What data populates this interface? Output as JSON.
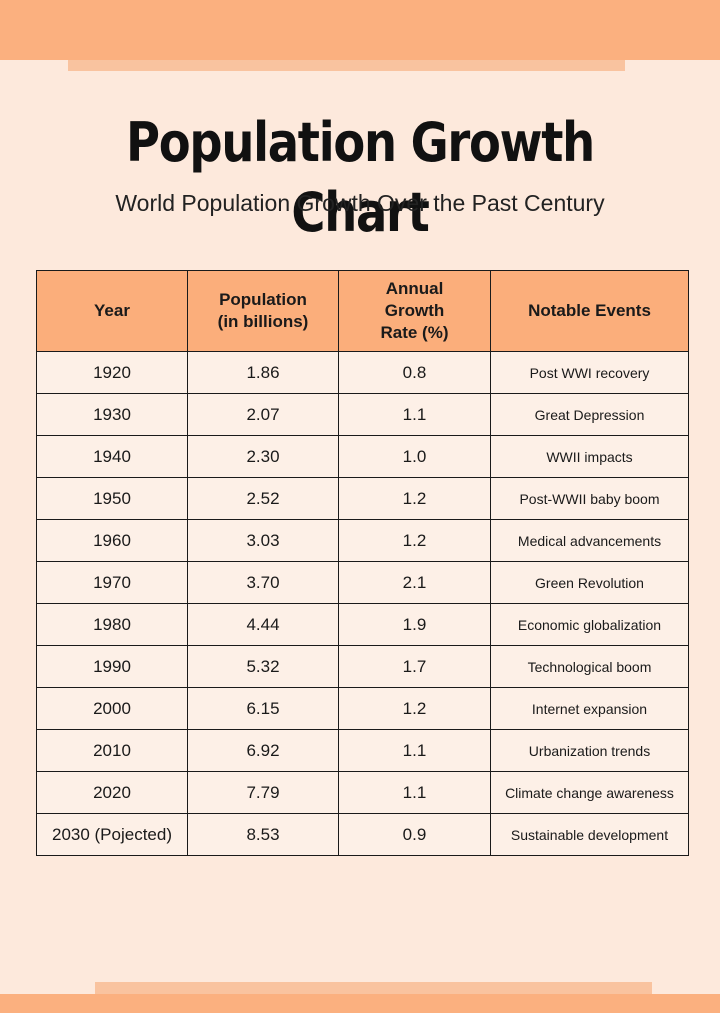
{
  "header": {
    "title": "Population Growth Chart",
    "subtitle": "World Population Growth Over the Past Century"
  },
  "table": {
    "headers": {
      "year": "Year",
      "population_line1": "Population",
      "population_line2": "(in billions)",
      "rate_line1": "Annual",
      "rate_line2": "Growth",
      "rate_line3": "Rate (%)",
      "events": "Notable Events"
    },
    "rows": [
      {
        "year": "1920",
        "population": "1.86",
        "rate": "0.8",
        "event": "Post WWI recovery"
      },
      {
        "year": "1930",
        "population": "2.07",
        "rate": "1.1",
        "event": "Great Depression"
      },
      {
        "year": "1940",
        "population": "2.30",
        "rate": "1.0",
        "event": "WWII impacts"
      },
      {
        "year": "1950",
        "population": "2.52",
        "rate": "1.2",
        "event": "Post-WWII baby boom"
      },
      {
        "year": "1960",
        "population": "3.03",
        "rate": "1.2",
        "event": "Medical advancements"
      },
      {
        "year": "1970",
        "population": "3.70",
        "rate": "2.1",
        "event": "Green Revolution"
      },
      {
        "year": "1980",
        "population": "4.44",
        "rate": "1.9",
        "event": "Economic globalization"
      },
      {
        "year": "1990",
        "population": "5.32",
        "rate": "1.7",
        "event": "Technological boom"
      },
      {
        "year": "2000",
        "population": "6.15",
        "rate": "1.2",
        "event": "Internet expansion"
      },
      {
        "year": "2010",
        "population": "6.92",
        "rate": "1.1",
        "event": "Urbanization trends"
      },
      {
        "year": "2020",
        "population": "7.79",
        "rate": "1.1",
        "event": "Climate change awareness"
      },
      {
        "year": "2030 (Pojected)",
        "population": "8.53",
        "rate": "0.9",
        "event": "Sustainable development"
      }
    ]
  },
  "colors": {
    "background": "#fde9dc",
    "accent_band": "#fbb07f",
    "accent_strip": "#f9c39f",
    "header_fill": "#fbae7b",
    "cell_fill": "#fdf0e7"
  }
}
